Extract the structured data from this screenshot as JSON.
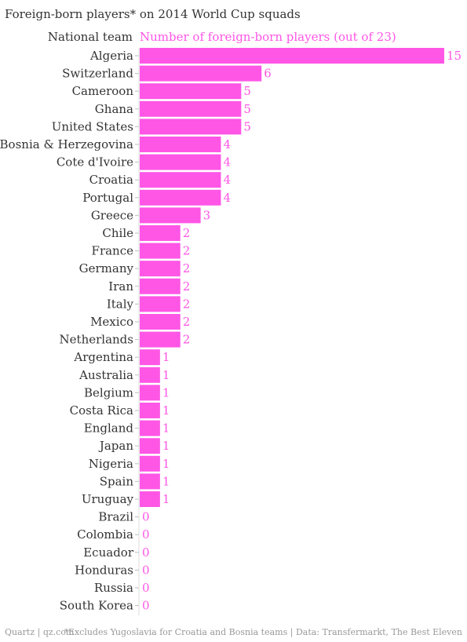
{
  "title": "Foreign-born players* on 2014 World Cup squads",
  "header": {
    "category_label": "National team",
    "value_label": "Number of foreign-born players (out of 23)"
  },
  "footer": {
    "source_left": "Quartz | qz.com",
    "source_right": "*Excludes Yugoslavia for Croatia and Bosnia teams | Data: Transfermarkt, The Best Eleven"
  },
  "colors": {
    "bar": "#ff56e6",
    "text": "#333333",
    "muted": "#999999"
  },
  "chart_data": {
    "type": "bar",
    "orientation": "horizontal",
    "categories": [
      "Algeria",
      "Switzerland",
      "Cameroon",
      "Ghana",
      "United States",
      "Bosnia & Herzegovina",
      "Cote d'Ivoire",
      "Croatia",
      "Portugal",
      "Greece",
      "Chile",
      "France",
      "Germany",
      "Iran",
      "Italy",
      "Mexico",
      "Netherlands",
      "Argentina",
      "Australia",
      "Belgium",
      "Costa Rica",
      "England",
      "Japan",
      "Nigeria",
      "Spain",
      "Uruguay",
      "Brazil",
      "Colombia",
      "Ecuador",
      "Honduras",
      "Russia",
      "South Korea"
    ],
    "values": [
      15,
      6,
      5,
      5,
      5,
      4,
      4,
      4,
      4,
      3,
      2,
      2,
      2,
      2,
      2,
      2,
      2,
      1,
      1,
      1,
      1,
      1,
      1,
      1,
      1,
      1,
      0,
      0,
      0,
      0,
      0,
      0
    ],
    "xlim": [
      0,
      15
    ],
    "grid": false
  }
}
